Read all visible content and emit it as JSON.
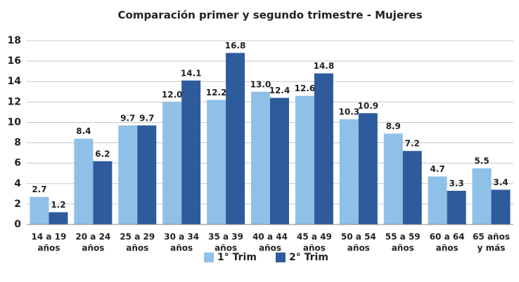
{
  "chart_data": {
    "type": "bar",
    "title": "Comparación primer y segundo trimestre - Mujeres",
    "categories": [
      [
        "14 a 19",
        "años"
      ],
      [
        "20 a 24",
        "años"
      ],
      [
        "25 a 29",
        "años"
      ],
      [
        "30 a 34",
        "años"
      ],
      [
        "35 a 39",
        "años"
      ],
      [
        "40 a 44",
        "años"
      ],
      [
        "45 a 49",
        "años"
      ],
      [
        "50 a 54",
        "años"
      ],
      [
        "55 a 59",
        "años"
      ],
      [
        "60 a 64",
        "años"
      ],
      [
        "65 años",
        "y más"
      ]
    ],
    "series": [
      {
        "name": "1° Trim",
        "color": "#8fc0e8",
        "values": [
          2.7,
          8.4,
          9.7,
          12.0,
          12.2,
          13.0,
          12.6,
          10.3,
          8.9,
          4.7,
          5.5
        ],
        "value_labels": [
          "2.7",
          "8.4",
          "9.7",
          "12.0",
          "12.2",
          "13.0",
          "12.6",
          "10.3",
          "8.9",
          "4.7",
          "5.5"
        ]
      },
      {
        "name": "2° Trim",
        "color": "#2e5b9c",
        "values": [
          1.2,
          6.2,
          9.7,
          14.1,
          16.8,
          12.4,
          14.8,
          10.9,
          7.2,
          3.3,
          3.4
        ],
        "value_labels": [
          "1.2",
          "6.2",
          "9.7",
          "14.1",
          "16.8",
          "12.4",
          "14.8",
          "10.9",
          "7.2",
          "3.3",
          "3.4"
        ]
      }
    ],
    "ylim": [
      0,
      18
    ],
    "yticks": [
      0,
      2,
      4,
      6,
      8,
      10,
      12,
      14,
      16,
      18
    ],
    "grid": true,
    "legend": "bottom"
  }
}
